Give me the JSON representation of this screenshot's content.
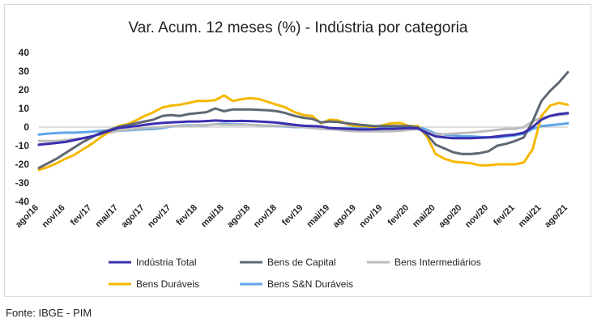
{
  "source_note": "Fonte: IBGE - PIM",
  "chart_data": {
    "type": "line",
    "title": "Var. Acum. 12 meses (%) - Indústria por categoria",
    "xlabel": "",
    "ylabel": "",
    "ylim": [
      -40,
      40
    ],
    "yticks": [
      "40",
      "30",
      "20",
      "10",
      "0",
      "-10",
      "-20",
      "-30",
      "-40"
    ],
    "grid": false,
    "legend_position": "bottom",
    "x_tick_labels": [
      "ago/16",
      "nov/16",
      "fev/17",
      "mai/17",
      "ago/17",
      "nov/17",
      "fev/18",
      "mai/18",
      "ago/18",
      "nov/18",
      "fev/19",
      "mai/19",
      "ago/19",
      "nov/19",
      "fev/20",
      "mai/20",
      "ago/20",
      "nov/20",
      "fev/21",
      "mai/21",
      "ago/21"
    ],
    "x": [
      "ago/16",
      "set/16",
      "out/16",
      "nov/16",
      "dez/16",
      "jan/17",
      "fev/17",
      "mar/17",
      "abr/17",
      "mai/17",
      "jun/17",
      "jul/17",
      "ago/17",
      "set/17",
      "out/17",
      "nov/17",
      "dez/17",
      "jan/18",
      "fev/18",
      "mar/18",
      "abr/18",
      "mai/18",
      "jun/18",
      "jul/18",
      "ago/18",
      "set/18",
      "out/18",
      "nov/18",
      "dez/18",
      "jan/19",
      "fev/19",
      "mar/19",
      "abr/19",
      "mai/19",
      "jun/19",
      "jul/19",
      "ago/19",
      "set/19",
      "out/19",
      "nov/19",
      "dez/19",
      "jan/20",
      "fev/20",
      "mar/20",
      "abr/20",
      "mai/20",
      "jun/20",
      "jul/20",
      "ago/20",
      "set/20",
      "out/20",
      "nov/20",
      "dez/20",
      "jan/21",
      "fev/21",
      "mar/21",
      "abr/21",
      "mai/21",
      "jun/21",
      "jul/21",
      "ago/21"
    ],
    "series": [
      {
        "name": "Indústria Total",
        "color": "#3a2fb0",
        "values": [
          -9.5,
          -9,
          -8.5,
          -8,
          -7,
          -6,
          -5,
          -3.5,
          -2,
          -0.5,
          0,
          0.5,
          1.2,
          1.8,
          2.2,
          2.5,
          2.7,
          3,
          3,
          3.2,
          3.5,
          3.3,
          3.2,
          3.3,
          3.2,
          3,
          2.7,
          2.4,
          1.8,
          1.2,
          0.7,
          0.5,
          0.3,
          -0.5,
          -0.7,
          -1,
          -1.2,
          -1.3,
          -1.2,
          -1,
          -1,
          -0.8,
          -0.5,
          -0.8,
          -3,
          -5,
          -5.5,
          -6,
          -6,
          -6,
          -5.8,
          -5.5,
          -5,
          -4.5,
          -4,
          -3,
          0,
          4,
          6,
          7,
          7.5
        ]
      },
      {
        "name": "Bens de Capital",
        "color": "#5f6873",
        "values": [
          -22,
          -19.5,
          -17,
          -14,
          -11,
          -8,
          -5.5,
          -3,
          -1.5,
          0,
          1,
          2,
          3,
          4,
          6,
          6.5,
          6,
          7,
          7.5,
          8,
          10,
          8.5,
          9.5,
          9.5,
          9.5,
          9.2,
          9,
          8.5,
          7.5,
          6,
          5,
          4.5,
          2.5,
          3,
          2.7,
          2,
          1.5,
          1,
          0.5,
          0.5,
          0.5,
          0.5,
          0.5,
          -0.2,
          -4,
          -9.5,
          -11.5,
          -13.5,
          -14.5,
          -14.5,
          -14,
          -13,
          -10,
          -9,
          -7.5,
          -5.5,
          3,
          14,
          19.5,
          24,
          29.5
        ]
      },
      {
        "name": "Bens Intermediários",
        "color": "#bdbdbd",
        "values": [
          -7.5,
          -7.5,
          -7.5,
          -7,
          -6.5,
          -6,
          -5,
          -4,
          -3,
          -2,
          -1.5,
          -1,
          -0.5,
          -0.2,
          0,
          0.5,
          0.5,
          0.7,
          1,
          1,
          1.5,
          1.2,
          1.2,
          1.2,
          1.2,
          1,
          0.8,
          0.7,
          0.5,
          0.3,
          0,
          -0.5,
          -1,
          -1.2,
          -1.5,
          -2,
          -2.2,
          -2.3,
          -2.3,
          -2.3,
          -2.2,
          -2,
          -1.5,
          -1,
          -2.5,
          -4,
          -3.8,
          -3.5,
          -3.2,
          -3,
          -2.5,
          -2,
          -1.5,
          -1,
          -1,
          0,
          3,
          5,
          6,
          6.5,
          7
        ]
      },
      {
        "name": "Bens Duráveis",
        "color": "#f5b800",
        "values": [
          -23,
          -21.5,
          -19.5,
          -17,
          -15,
          -12,
          -9,
          -5.5,
          -2.5,
          0.5,
          1.5,
          3.5,
          6,
          8,
          10.5,
          11.5,
          12,
          13,
          14,
          14,
          14.5,
          17,
          14,
          15,
          15.5,
          15,
          13.5,
          12,
          10.5,
          8,
          6.5,
          6,
          2,
          4,
          3.5,
          1.5,
          0.5,
          0.5,
          0,
          1,
          2,
          2.2,
          0.5,
          0.5,
          -5,
          -14.5,
          -17,
          -18.5,
          -19,
          -19.5,
          -20.5,
          -20.5,
          -20,
          -20,
          -20,
          -19,
          -12,
          6,
          11.5,
          13,
          12
        ]
      },
      {
        "name": "Bens S&N Duráveis",
        "color": "#5ea6e8",
        "values": [
          -4,
          -3.5,
          -3.2,
          -3,
          -3,
          -2.8,
          -2.5,
          -2,
          -2,
          -2,
          -1.8,
          -1.5,
          -1.2,
          -1,
          -0.5,
          0.3,
          0.8,
          1,
          1,
          1,
          1.5,
          1.8,
          1.5,
          1.5,
          1.2,
          1,
          0.8,
          0.5,
          0.3,
          0,
          0,
          0,
          -0.5,
          -0.5,
          -1,
          -0.5,
          -0.5,
          -0.3,
          0,
          0,
          0.2,
          0.5,
          0.3,
          0,
          -1.5,
          -3.5,
          -4,
          -4.5,
          -5,
          -5,
          -5.3,
          -5.5,
          -5.5,
          -5,
          -4.5,
          -3.5,
          -1,
          0.5,
          1,
          1.5,
          2
        ]
      }
    ]
  }
}
